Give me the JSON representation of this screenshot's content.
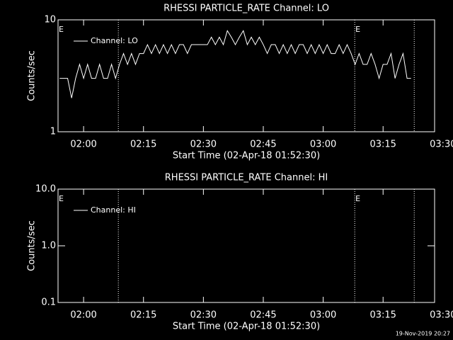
{
  "chart_data": [
    {
      "type": "line",
      "title": "RHESSI PARTICLE_RATE Channel: LO",
      "xlabel": "Start Time (02-Apr-18 01:52:30)",
      "ylabel": "Counts/sec",
      "log_y": true,
      "xlim": [
        113.6,
        207.9
      ],
      "ylim": [
        1,
        10
      ],
      "yticks": [
        1,
        10
      ],
      "xticks": [
        {
          "value": 120,
          "label": "02:00"
        },
        {
          "value": 135,
          "label": "02:15"
        },
        {
          "value": 150,
          "label": "02:30"
        },
        {
          "value": 165,
          "label": "02:45"
        },
        {
          "value": 180,
          "label": "03:00"
        },
        {
          "value": 195,
          "label": "03:15"
        },
        {
          "value": 210,
          "label": "03:30"
        }
      ],
      "vlines": [
        128.7,
        187.9,
        202.8
      ],
      "annotations": [
        {
          "text": "E",
          "x": 113.6
        },
        {
          "text": "E",
          "x": 187.9
        }
      ],
      "x": [
        114,
        115,
        116,
        117,
        118,
        119,
        120,
        121,
        122,
        123,
        124,
        125,
        126,
        127,
        128,
        129,
        130,
        131,
        132,
        133,
        134,
        135,
        136,
        137,
        138,
        139,
        140,
        141,
        142,
        143,
        144,
        145,
        146,
        147,
        148,
        149,
        150,
        151,
        152,
        153,
        154,
        155,
        156,
        157,
        158,
        159,
        160,
        161,
        162,
        163,
        164,
        165,
        166,
        167,
        168,
        169,
        170,
        171,
        172,
        173,
        174,
        175,
        176,
        177,
        178,
        179,
        180,
        181,
        182,
        183,
        184,
        185,
        186,
        187,
        188,
        189,
        190,
        191,
        192,
        193,
        194,
        195,
        196,
        197,
        198,
        199,
        200,
        201,
        202
      ],
      "series": [
        {
          "name": "Channel: LO",
          "color": "#ffffff",
          "values": [
            3,
            3,
            3,
            2,
            3,
            4,
            3,
            4,
            3,
            3,
            4,
            3,
            3,
            4,
            3,
            4,
            5,
            4,
            5,
            4,
            5,
            5,
            6,
            5,
            6,
            5,
            6,
            5,
            6,
            5,
            6,
            6,
            5,
            6,
            6,
            6,
            6,
            6,
            7,
            6,
            7,
            6,
            8,
            7,
            6,
            7,
            8,
            6,
            7,
            6,
            7,
            6,
            5,
            6,
            6,
            5,
            6,
            5,
            6,
            5,
            6,
            6,
            5,
            6,
            5,
            6,
            5,
            6,
            5,
            5,
            6,
            5,
            6,
            5,
            4,
            5,
            4,
            4,
            5,
            4,
            3,
            4,
            4,
            5,
            3,
            4,
            5,
            3,
            3
          ]
        }
      ]
    },
    {
      "type": "line",
      "title": "RHESSI PARTICLE_RATE Channel: HI",
      "xlabel": "Start Time (02-Apr-18 01:52:30)",
      "ylabel": "Counts/sec",
      "log_y": true,
      "xlim": [
        113.6,
        207.9
      ],
      "ylim": [
        0.1,
        10
      ],
      "yticks": [
        0.1,
        {
          "value": 1,
          "label": "1.0"
        },
        {
          "value": 10,
          "label": "10.0"
        }
      ],
      "xticks": [
        {
          "value": 120,
          "label": "02:00"
        },
        {
          "value": 135,
          "label": "02:15"
        },
        {
          "value": 150,
          "label": "02:30"
        },
        {
          "value": 165,
          "label": "02:45"
        },
        {
          "value": 180,
          "label": "03:00"
        },
        {
          "value": 195,
          "label": "03:15"
        },
        {
          "value": 210,
          "label": "03:30"
        }
      ],
      "vlines": [
        128.7,
        187.9,
        202.8
      ],
      "annotations": [
        {
          "text": "E",
          "x": 113.6
        },
        {
          "text": "E",
          "x": 187.9
        }
      ],
      "x": [],
      "series": [
        {
          "name": "Channel: HI",
          "color": "#ffffff",
          "values": []
        }
      ]
    }
  ],
  "footer": "19-Nov-2019 20:27"
}
